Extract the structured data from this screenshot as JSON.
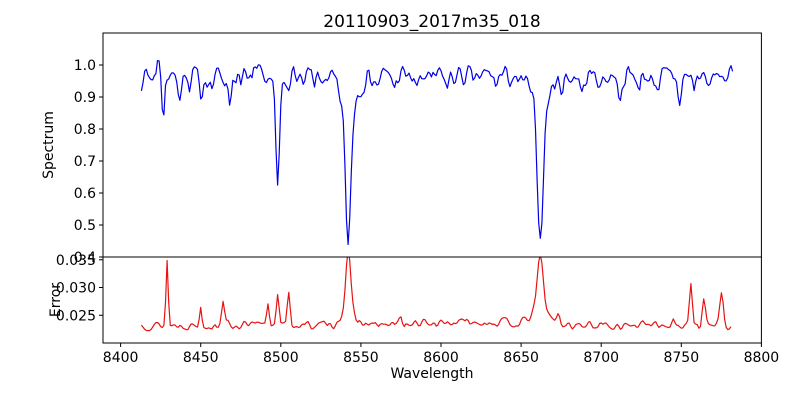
{
  "title": "20110903_2017m35_018",
  "colors": {
    "spectrum_line": "#0000e6",
    "error_line": "#e81212",
    "axes": "#000000",
    "background": "#ffffff",
    "text": "#000000"
  },
  "chart_data": [
    {
      "type": "line",
      "panel": "spectrum",
      "title": "20110903_2017m35_018",
      "ylabel": "Spectrum",
      "legend": "none",
      "grid": false,
      "color": "#0000e6",
      "xlim": [
        8389,
        8800
      ],
      "ylim": [
        0.4,
        1.1
      ],
      "ytick_values": [
        1.0,
        0.9,
        0.8,
        0.7,
        0.6,
        0.5,
        0.4
      ],
      "ytick_labels": [
        "1.0",
        "0.9",
        "0.8",
        "0.7",
        "0.6",
        "0.5",
        "0.4"
      ],
      "x_start": 8413,
      "x_end": 8782,
      "step": 1,
      "seed": 7,
      "base": 0.965,
      "noise_amp": 0.042,
      "absorption_line_centers": [
        8498,
        8542,
        8662
      ],
      "absorption_line_minima": [
        0.61,
        0.45,
        0.47
      ],
      "features": [
        [
          8423.5,
          0.095,
          0.55
        ],
        [
          8426.5,
          -0.14,
          0.65
        ],
        [
          8437,
          -0.045,
          0.9
        ],
        [
          8443,
          -0.065,
          0.8
        ],
        [
          8450,
          -0.05,
          1.1
        ],
        [
          8457,
          -0.038,
          0.8
        ],
        [
          8468,
          -0.085,
          0.9
        ],
        [
          8475,
          -0.048,
          0.8
        ],
        [
          8482,
          -0.038,
          0.7
        ],
        [
          8498,
          -0.3,
          1.1
        ],
        [
          8498,
          -0.055,
          3.0
        ],
        [
          8514,
          -0.048,
          1.0
        ],
        [
          8521,
          -0.038,
          0.8
        ],
        [
          8529,
          -0.042,
          1.0
        ],
        [
          8542,
          -0.4,
          1.6
        ],
        [
          8542,
          -0.12,
          4.5
        ],
        [
          8560,
          -0.035,
          1.0
        ],
        [
          8571,
          -0.038,
          0.8
        ],
        [
          8585,
          -0.045,
          1.2
        ],
        [
          8594,
          -0.035,
          0.8
        ],
        [
          8604,
          -0.04,
          0.9
        ],
        [
          8620,
          -0.035,
          0.8
        ],
        [
          8634,
          -0.03,
          0.8
        ],
        [
          8648,
          -0.042,
          1.0
        ],
        [
          8662,
          -0.38,
          1.7
        ],
        [
          8662,
          -0.12,
          5.0
        ],
        [
          8676,
          -0.038,
          0.9
        ],
        [
          8688,
          -0.06,
          1.0
        ],
        [
          8700,
          -0.038,
          0.8
        ],
        [
          8712,
          -0.065,
          1.0
        ],
        [
          8724,
          -0.042,
          0.8
        ],
        [
          8736,
          -0.06,
          1.0
        ],
        [
          8749,
          -0.075,
          1.2
        ],
        [
          8758,
          -0.04,
          0.8
        ],
        [
          8768,
          -0.048,
          0.9
        ]
      ]
    },
    {
      "type": "line",
      "panel": "error",
      "ylabel": "Error",
      "xlabel": "Wavelength",
      "legend": "none",
      "grid": false,
      "color": "#e81212",
      "xlim": [
        8389,
        8800
      ],
      "ylim": [
        0.02,
        0.0355
      ],
      "ytick_values": [
        0.035,
        0.03,
        0.025
      ],
      "ytick_labels": [
        "0.035",
        "0.030",
        "0.025"
      ],
      "xtick_values": [
        8400,
        8450,
        8500,
        8550,
        8600,
        8650,
        8700,
        8750,
        8800
      ],
      "xtick_labels": [
        "8400",
        "8450",
        "8500",
        "8550",
        "8600",
        "8650",
        "8700",
        "8750",
        "8800"
      ],
      "x_start": 8413,
      "x_end": 8781,
      "step": 1,
      "seed": 13,
      "base": 0.0232,
      "noise_amp": 0.0009,
      "error_spike_centers": [
        8429,
        8450,
        8464,
        8492,
        8498,
        8505,
        8542,
        8662,
        8756,
        8764,
        8775
      ],
      "error_spike_peaks": [
        0.0348,
        0.0266,
        0.0282,
        0.0272,
        0.0292,
        0.0287,
        0.0333,
        0.0333,
        0.0302,
        0.0284,
        0.029
      ],
      "features": [
        [
          8429,
          0.0116,
          0.7
        ],
        [
          8450,
          0.0034,
          0.7
        ],
        [
          8464,
          0.005,
          0.9
        ],
        [
          8492,
          0.004,
          0.8
        ],
        [
          8498,
          0.006,
          0.9
        ],
        [
          8505,
          0.0055,
          0.9
        ],
        [
          8542,
          0.0098,
          1.5
        ],
        [
          8542,
          0.003,
          4.0
        ],
        [
          8575,
          0.0013,
          0.9
        ],
        [
          8620,
          0.0006,
          25
        ],
        [
          8662,
          0.0098,
          1.7
        ],
        [
          8662,
          0.003,
          5.0
        ],
        [
          8673,
          0.0015,
          1.2
        ],
        [
          8745,
          0.0012,
          0.9
        ],
        [
          8756,
          0.007,
          0.9
        ],
        [
          8764,
          0.005,
          1.0
        ],
        [
          8775,
          0.0058,
          1.1
        ]
      ]
    }
  ]
}
